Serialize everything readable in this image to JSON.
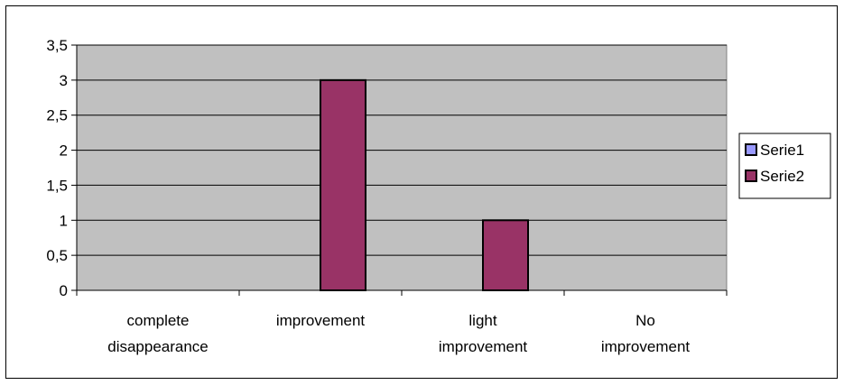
{
  "chart_data": {
    "type": "bar",
    "title": "",
    "xlabel": "",
    "ylabel": "",
    "categories": [
      [
        "complete",
        "disappearance"
      ],
      [
        "improvement"
      ],
      [
        "light",
        "improvement"
      ],
      [
        "No",
        "improvement"
      ]
    ],
    "series": [
      {
        "name": "Serie1",
        "values": [
          0,
          0,
          0,
          0
        ],
        "color": "#9999FF"
      },
      {
        "name": "Serie2",
        "values": [
          0,
          3,
          1,
          0
        ],
        "color": "#993366"
      }
    ],
    "ylim": [
      0,
      3.5
    ],
    "yticks": [
      "0",
      "0,5",
      "1",
      "1,5",
      "2",
      "2,5",
      "3",
      "3,5"
    ],
    "plot_background": "#C0C0C0",
    "grid": true,
    "legend_position": "right"
  }
}
